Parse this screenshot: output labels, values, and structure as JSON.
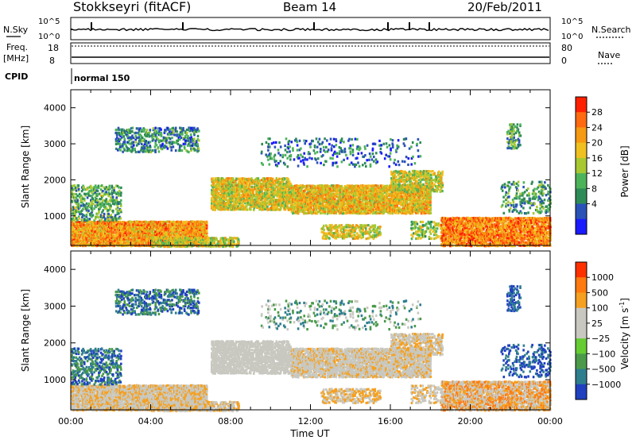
{
  "header": {
    "station": "Stokkseyri (fitACF)",
    "beam": "Beam 14",
    "date": "20/Feb/2011"
  },
  "strips": {
    "nsky_label": "N.Sky",
    "nsky_ticks": [
      "10^5",
      "10^0"
    ],
    "nsearch_label": "N.Search",
    "nsearch_ticks": [
      "10^5",
      "10^0"
    ],
    "freq_label": "Freq.",
    "freq_unit": "[MHz]",
    "freq_ticks": [
      "18",
      "8"
    ],
    "nave_label": "Nave",
    "nave_ticks": [
      "80",
      "0"
    ],
    "cpid_label": "CPID",
    "cpid_value": "normal 150"
  },
  "chart_data": [
    {
      "type": "heatmap",
      "name": "power",
      "ylabel": "Slant Range [km]",
      "xlabel": "",
      "yticks": [
        "1000",
        "2000",
        "3000",
        "4000"
      ],
      "ylim": [
        180,
        4500
      ],
      "xlim": [
        0,
        24
      ],
      "colorbar": {
        "label": "Power [dB]",
        "ticks": [
          "4",
          "8",
          "12",
          "16",
          "20",
          "24",
          "28"
        ],
        "colors": [
          "#1a1aff",
          "#2a52b8",
          "#2e8b57",
          "#4db35a",
          "#a8c832",
          "#f0c020",
          "#f59a12",
          "#ff6a10",
          "#ff2000"
        ]
      }
    },
    {
      "type": "heatmap",
      "name": "velocity",
      "ylabel": "Slant Range [km]",
      "xlabel": "Time UT",
      "yticks": [
        "1000",
        "2000",
        "3000",
        "4000"
      ],
      "ylim": [
        180,
        4500
      ],
      "xlim": [
        0,
        24
      ],
      "xticks": [
        "00:00",
        "04:00",
        "08:00",
        "12:00",
        "16:00",
        "20:00",
        "00:00"
      ],
      "colorbar": {
        "label": "Velocity [m s",
        "label_sup": "-1",
        "label_end": "]",
        "ticks": [
          "1000",
          "500",
          "100",
          "25",
          "−25",
          "−100",
          "−500",
          "−1000"
        ],
        "colors": [
          "#2040c0",
          "#2e7e8e",
          "#4a9a4a",
          "#66cc33",
          "#c8c8c0",
          "#c8c8c0",
          "#f5a020",
          "#ff7a10",
          "#ff3000"
        ]
      }
    }
  ]
}
